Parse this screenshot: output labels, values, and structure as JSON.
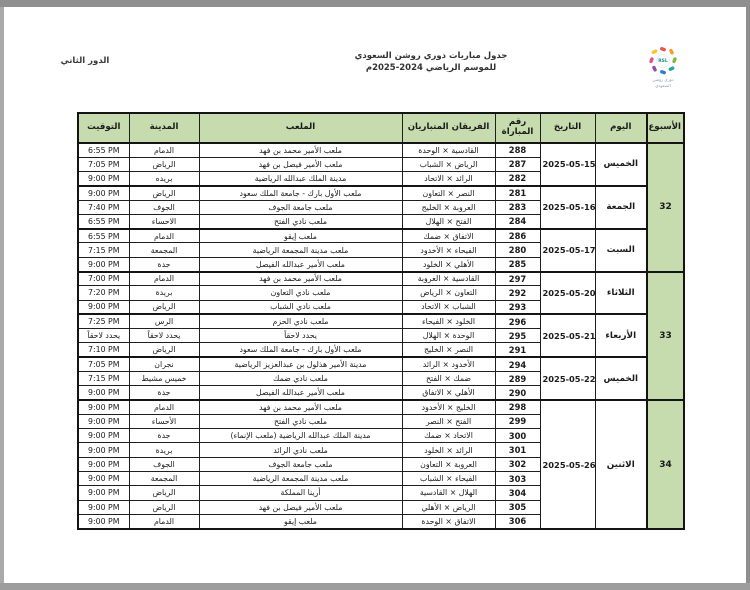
{
  "page": {
    "round_label": "الدور الثاني",
    "title_line1": "جدول مباريات دوري روشن السعودي",
    "title_line2": "للموسم الرياضي 2024-2025م",
    "logo": {
      "monogram": "RSL",
      "caption": "دوري روشن\nالسعودي"
    },
    "accent_green": "#c6dbae",
    "frame_gray": "#8f8f8f"
  },
  "table": {
    "headers": {
      "week": "الأسبوع",
      "day": "اليوم",
      "date": "التاريخ",
      "match_no_line1": "رقم",
      "match_no_line2": "المباراة",
      "teams": "الفريقان المتباريان",
      "stadium": "الملعب",
      "city": "المدينة",
      "time": "التوقيت"
    },
    "weeks": [
      {
        "week": "32",
        "days": [
          {
            "day": "الخميس",
            "date": "2025-05-15",
            "matches": [
              {
                "no": "288",
                "teams": "القادسية × الوحدة",
                "stadium": "ملعب الأمير محمد بن فهد",
                "city": "الدمام",
                "time": "6:55 PM"
              },
              {
                "no": "287",
                "teams": "الرياض × الشباب",
                "stadium": "ملعب الأمير فيصل بن فهد",
                "city": "الرياض",
                "time": "7:05 PM"
              },
              {
                "no": "282",
                "teams": "الرائد × الاتحاد",
                "stadium": "مدينة الملك عبدالله الرياضية",
                "city": "بريده",
                "time": "9:00 PM"
              }
            ]
          },
          {
            "day": "الجمعة",
            "date": "2025-05-16",
            "matches": [
              {
                "no": "281",
                "teams": "النصر × التعاون",
                "stadium": "ملعب الأول بارك - جامعة الملك سعود",
                "city": "الرياض",
                "time": "9:00 PM"
              },
              {
                "no": "283",
                "teams": "العروبة × الخليج",
                "stadium": "ملعب جامعة الجوف",
                "city": "الجوف",
                "time": "7:40 PM"
              },
              {
                "no": "284",
                "teams": "الفتح × الهلال",
                "stadium": "ملعب نادي الفتح",
                "city": "الاحساء",
                "time": "6:55 PM"
              }
            ]
          },
          {
            "day": "السبت",
            "date": "2025-05-17",
            "matches": [
              {
                "no": "286",
                "teams": "الاتفاق × ضمك",
                "stadium": "ملعب إيقو",
                "city": "الدمام",
                "time": "6:55 PM"
              },
              {
                "no": "280",
                "teams": "الفيحاء × الأخدود",
                "stadium": "ملعب مدينة المجمعة الرياضية",
                "city": "المجمعة",
                "time": "7:15 PM"
              },
              {
                "no": "285",
                "teams": "الأهلي × الخلود",
                "stadium": "ملعب الأمير عبدالله الفيصل",
                "city": "جدة",
                "time": "9:00 PM"
              }
            ]
          }
        ]
      },
      {
        "week": "33",
        "days": [
          {
            "day": "الثلاثاء",
            "date": "2025-05-20",
            "matches": [
              {
                "no": "297",
                "teams": "القادسية × العروبة",
                "stadium": "ملعب الأمير محمد بن فهد",
                "city": "الدمام",
                "time": "7:00 PM"
              },
              {
                "no": "292",
                "teams": "التعاون × الرياض",
                "stadium": "ملعب نادي التعاون",
                "city": "بريدة",
                "time": "7:20 PM"
              },
              {
                "no": "293",
                "teams": "الشباب × الاتحاد",
                "stadium": "ملعب نادي الشباب",
                "city": "الرياض",
                "time": "9:00 PM"
              }
            ]
          },
          {
            "day": "الأربعاء",
            "date": "2025-05-21",
            "matches": [
              {
                "no": "296",
                "teams": "الخلود × الفيحاء",
                "stadium": "ملعب نادي الحزم",
                "city": "الرس",
                "time": "7:25 PM"
              },
              {
                "no": "295",
                "teams": "الوحدة × الهلال",
                "stadium": "يحدد لاحقاً",
                "city": "يحدد لاحقاً",
                "time": "يحدد لاحقاً"
              },
              {
                "no": "291",
                "teams": "النصر × الخليج",
                "stadium": "ملعب الأول بارك - جامعة الملك سعود",
                "city": "الرياض",
                "time": "7:10 PM"
              }
            ]
          },
          {
            "day": "الخميس",
            "date": "2025-05-22",
            "matches": [
              {
                "no": "294",
                "teams": "الأخدود × الرائد",
                "stadium": "مدينة الأمير هذلول بن عبدالعزيز الرياضية",
                "city": "نجران",
                "time": "7:05 PM"
              },
              {
                "no": "289",
                "teams": "ضمك × الفتح",
                "stadium": "ملعب نادي ضمك",
                "city": "خميس مشيط",
                "time": "7:15 PM"
              },
              {
                "no": "290",
                "teams": "الأهلي × الاتفاق",
                "stadium": "ملعب الأمير عبدالله الفيصل",
                "city": "جدة",
                "time": "9:00 PM"
              }
            ]
          }
        ]
      },
      {
        "week": "34",
        "days": [
          {
            "day": "الاثنين",
            "date": "2025-05-26",
            "matches": [
              {
                "no": "298",
                "teams": "الخليج × الأخدود",
                "stadium": "ملعب الأمير محمد بن فهد",
                "city": "الدمام",
                "time": "9:00 PM"
              },
              {
                "no": "299",
                "teams": "الفتح × النصر",
                "stadium": "ملعب نادي الفتح",
                "city": "الأحساء",
                "time": "9:00 PM"
              },
              {
                "no": "300",
                "teams": "الاتحاد × ضمك",
                "stadium": "مدينة الملك عبدالله الرياضية (ملعب الإنماء)",
                "city": "جدة",
                "time": "9:00 PM"
              },
              {
                "no": "301",
                "teams": "الرائد × الخلود",
                "stadium": "ملعب نادي الرائد",
                "city": "بريدة",
                "time": "9:00 PM"
              },
              {
                "no": "302",
                "teams": "العروبة × التعاون",
                "stadium": "ملعب جامعة الجوف",
                "city": "الجوف",
                "time": "9:00 PM"
              },
              {
                "no": "303",
                "teams": "الفيحاء × الشباب",
                "stadium": "ملعب مدينة المجمعة الرياضية",
                "city": "المجمعة",
                "time": "9:00 PM"
              },
              {
                "no": "304",
                "teams": "الهلال × القادسية",
                "stadium": "أرينا المملكة",
                "city": "الرياض",
                "time": "9:00 PM"
              },
              {
                "no": "305",
                "teams": "الرياض × الأهلي",
                "stadium": "ملعب الأمير فيصل بن فهد",
                "city": "الرياض",
                "time": "9:00 PM"
              },
              {
                "no": "306",
                "teams": "الاتفاق × الوحدة",
                "stadium": "ملعب إيقو",
                "city": "الدمام",
                "time": "9:00 PM"
              }
            ]
          }
        ]
      }
    ]
  }
}
